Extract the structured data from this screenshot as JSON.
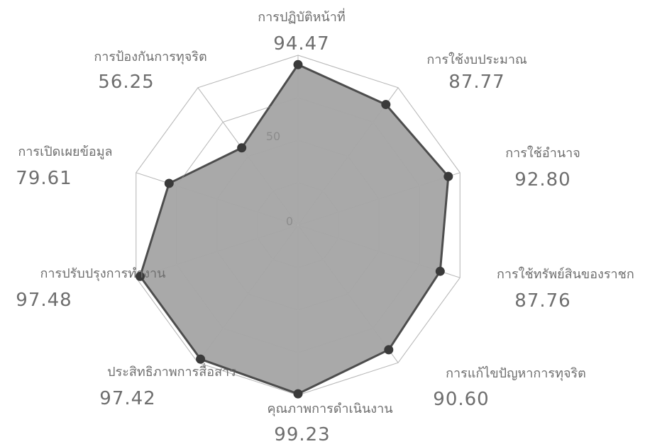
{
  "chart_data": {
    "type": "radar",
    "categories": [
      "การปฏิบัติหน้าที่",
      "การใช้งบประมาณ",
      "การใช้อำนาจ",
      "การใช้ทรัพย์สินของราชก",
      "การแก้ไขปัญหาการทุจริต",
      "คุณภาพการดำเนินงาน",
      "ประสิทธิภาพการสื่อสาร",
      "การปรับปรุงการทำงาน",
      "การเปิดเผยข้อมูล",
      "การป้องกันการทุจริต"
    ],
    "values": [
      94.47,
      87.77,
      92.8,
      87.76,
      90.6,
      99.23,
      97.42,
      97.48,
      79.61,
      56.25
    ],
    "value_labels": [
      "94.47",
      "87.77",
      "92.80",
      "87.76",
      "90.60",
      "99.23",
      "97.42",
      "97.48",
      "79.61",
      "56.25"
    ],
    "ticks": [
      "0",
      "50"
    ],
    "rlim": [
      0,
      100
    ],
    "grid": true,
    "colors": {
      "fill": "#9a9a9a",
      "line": "#4d4d4d",
      "point": "#3a3a3a",
      "grid": "#b8b8b8",
      "text": "#6e6e6e"
    }
  }
}
